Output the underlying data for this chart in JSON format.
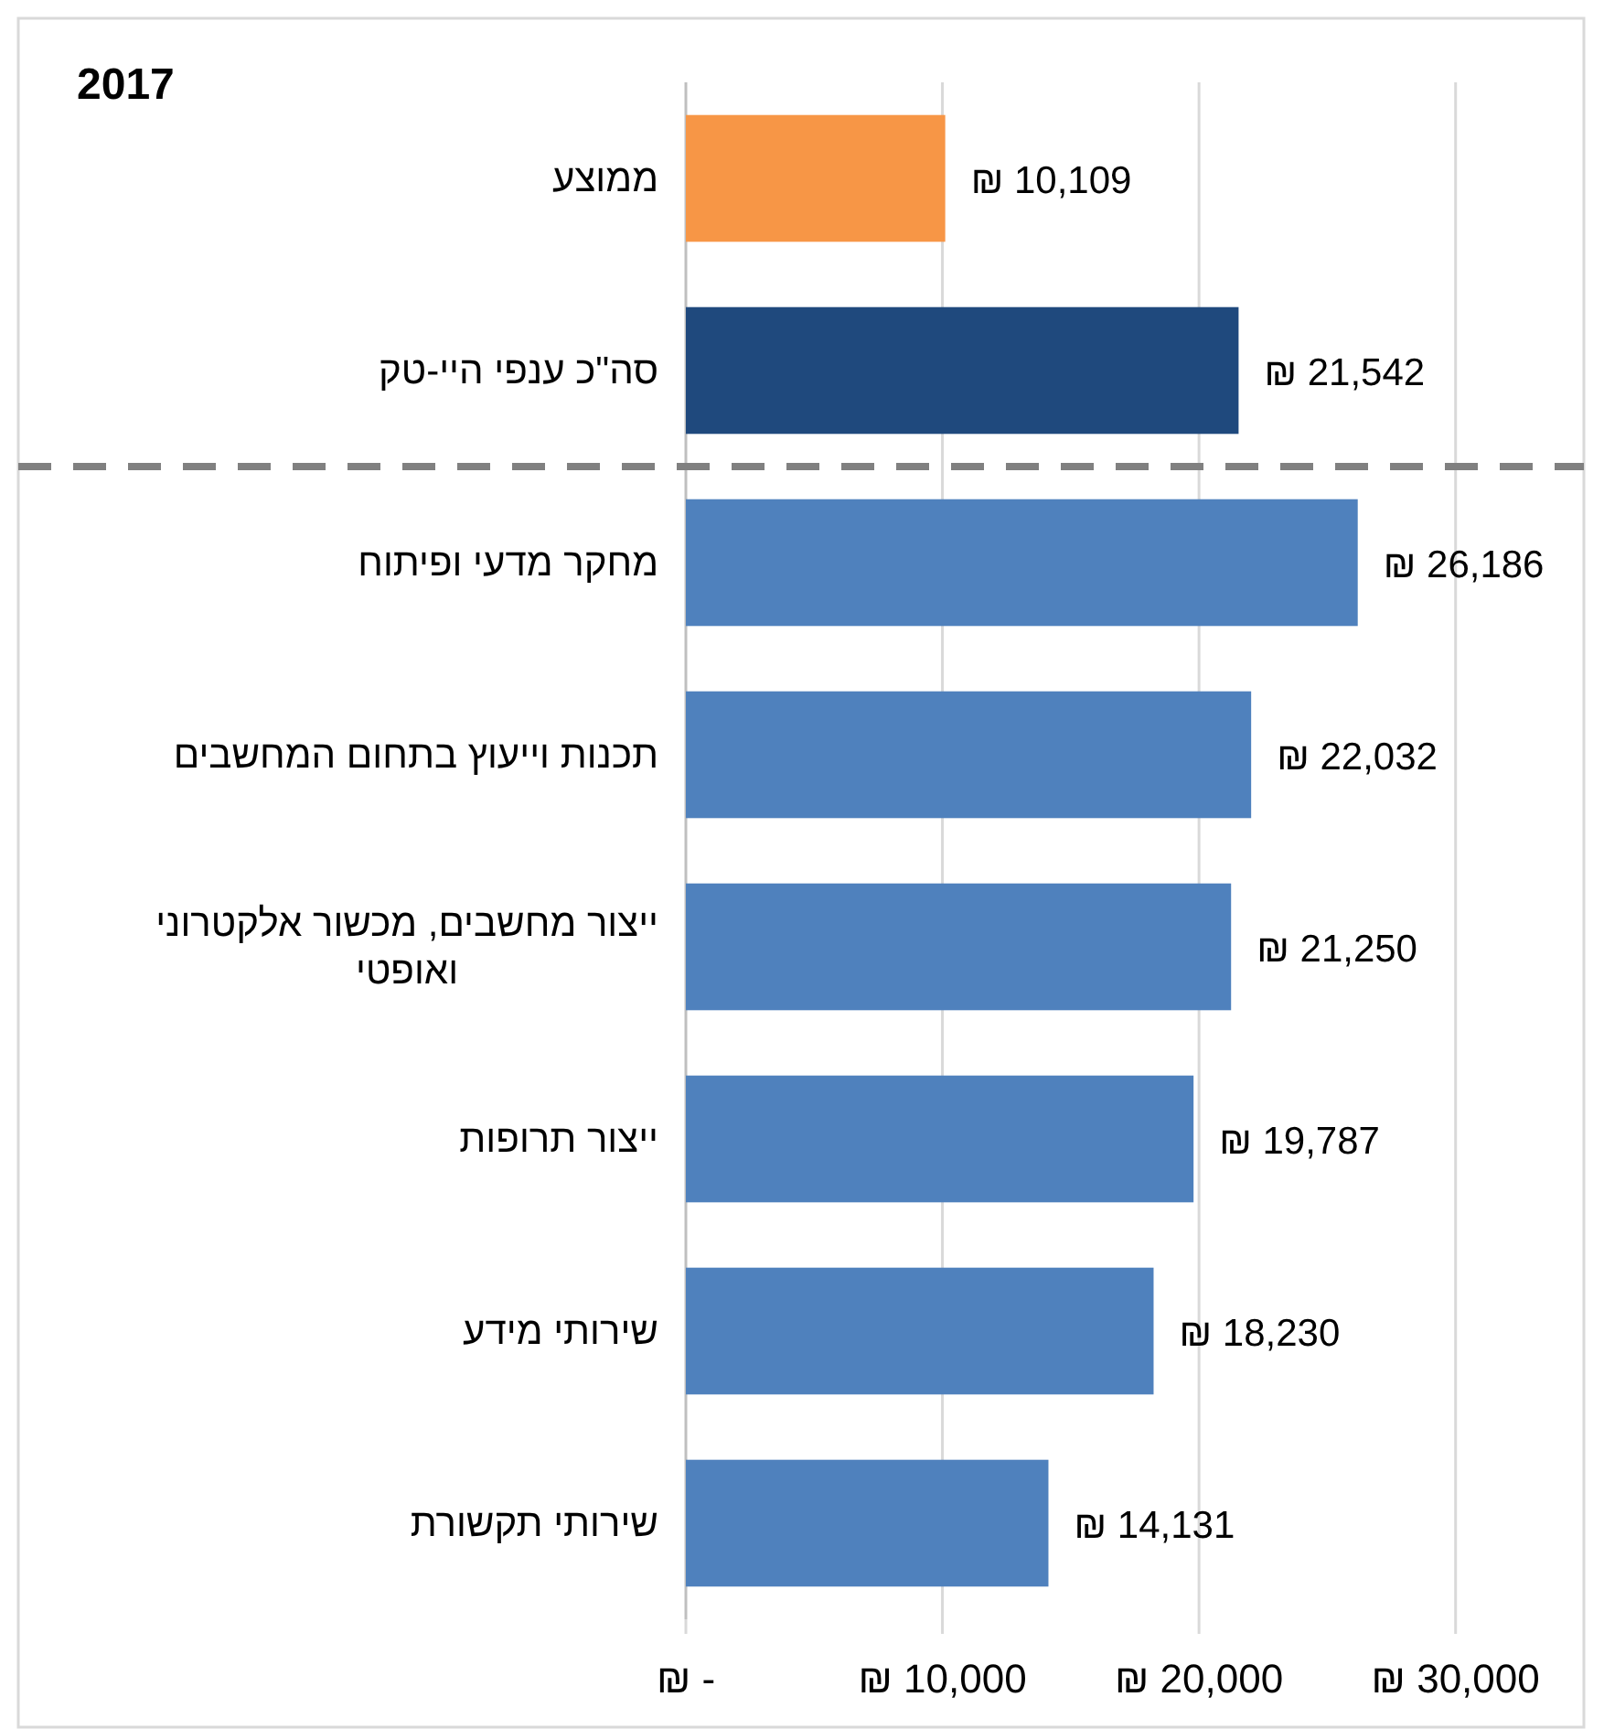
{
  "chart_data": {
    "type": "bar",
    "orientation": "horizontal",
    "title": "2017",
    "categories": [
      "ממוצע",
      "סה\"כ ענפי היי-טק",
      "מחקר מדעי ופיתוח",
      "תכנות וייעוץ בתחום המחשבים",
      "ייצור מחשבים, מכשור אלקטרוני ואופטי",
      "ייצור תרופות",
      "שירותי מידע",
      "שירותי תקשורת"
    ],
    "values": [
      10109,
      21542,
      26186,
      22032,
      21250,
      19787,
      18230,
      14131
    ],
    "colors": [
      "#f79646",
      "#1f497d",
      "#4f81bd",
      "#4f81bd",
      "#4f81bd",
      "#4f81bd",
      "#4f81bd",
      "#4f81bd"
    ],
    "value_labels": [
      "₪ 10,109",
      "₪ 21,542",
      "₪ 26,186",
      "₪ 22,032",
      "₪ 21,250",
      "₪ 19,787",
      "₪ 18,230",
      "₪ 14,131"
    ],
    "xlim": [
      0,
      35000
    ],
    "xticks": [
      {
        "value": 0,
        "label": "₪ -"
      },
      {
        "value": 10000,
        "label": "₪ 10,000"
      },
      {
        "value": 20000,
        "label": "₪ 20,000"
      },
      {
        "value": 30000,
        "label": "₪ 30,000"
      }
    ],
    "grid": "x",
    "ref_lines": [
      {
        "axis": "y",
        "value": "סה\"כ ענפי היי-טק",
        "color": "#808080",
        "line_style": "dashed"
      }
    ]
  }
}
